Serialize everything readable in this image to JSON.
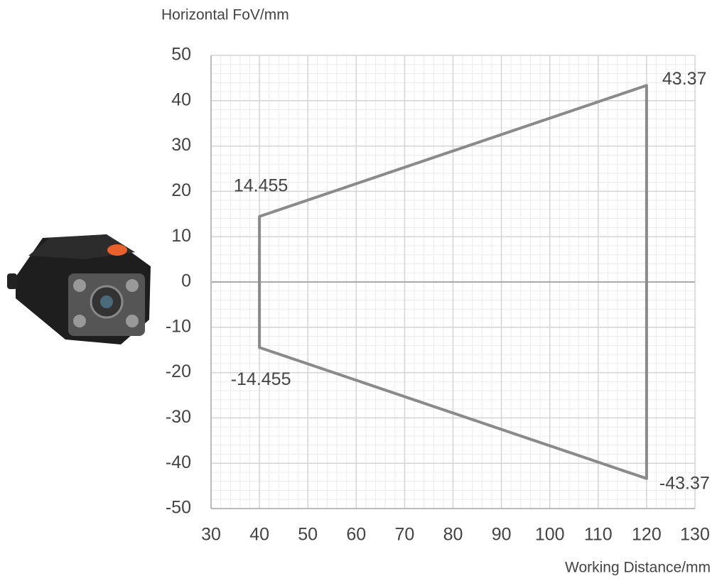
{
  "chart_data": {
    "type": "line",
    "y_axis_label": "Horizontal FoV/mm",
    "x_axis_label": "Working Distance/mm",
    "series": [
      {
        "x": [
          40,
          120,
          120,
          40
        ],
        "values": [
          14.455,
          43.37,
          -43.37,
          -14.455
        ],
        "color": "#8a8a8a",
        "closed": true
      }
    ],
    "xlim": [
      30,
      130
    ],
    "xticks": [
      30,
      40,
      50,
      60,
      70,
      80,
      90,
      100,
      110,
      120,
      130
    ],
    "ylim": [
      -50,
      50
    ],
    "yticks": [
      50,
      40,
      30,
      20,
      10,
      0,
      -10,
      -20,
      -30,
      -40,
      -50
    ],
    "grid": true
  }
}
